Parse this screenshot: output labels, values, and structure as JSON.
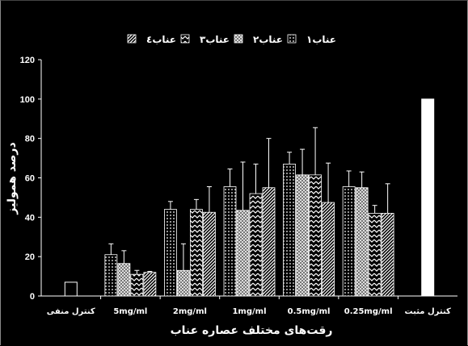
{
  "chart_data": {
    "type": "bar",
    "title": "",
    "xlabel": "رقت‌های مختلف عصاره عناب",
    "ylabel": "درصد همولیز",
    "ylim": [
      0,
      120
    ],
    "yticks": [
      0,
      20,
      40,
      60,
      80,
      100,
      120
    ],
    "grid": false,
    "legend_position": "top",
    "categories": [
      "کنترل منفی",
      "5mg/ml",
      "2mg/ml",
      "1mg/ml",
      "0.5mg/ml",
      "0.25mg/ml",
      "کنترل مثبت"
    ],
    "controls": [
      {
        "category": "کنترل منفی",
        "value": 7,
        "pattern": "hollow"
      },
      {
        "category": "کنترل مثبت",
        "value": 100,
        "pattern": "solid-white"
      }
    ],
    "series": [
      {
        "name": "عناب۱",
        "pattern": "dots",
        "values": [
          null,
          21,
          44,
          55.5,
          67,
          55.5,
          null
        ],
        "errors": [
          null,
          5.5,
          4,
          9,
          6,
          8,
          null
        ]
      },
      {
        "name": "عناب۲",
        "pattern": "checker",
        "values": [
          null,
          16.5,
          13,
          43.5,
          61.5,
          55,
          null
        ],
        "errors": [
          null,
          6.5,
          13.5,
          24.5,
          13,
          8,
          null
        ]
      },
      {
        "name": "عناب۳",
        "pattern": "zigzag",
        "values": [
          null,
          11,
          44,
          52,
          61.5,
          42,
          null
        ],
        "errors": [
          null,
          2,
          5,
          15,
          24,
          4,
          null
        ]
      },
      {
        "name": "عناب٤",
        "pattern": "diagonal",
        "values": [
          null,
          12,
          42.5,
          55,
          47.5,
          42,
          null
        ],
        "errors": [
          null,
          0.5,
          13,
          25,
          20,
          15,
          null
        ]
      }
    ]
  }
}
